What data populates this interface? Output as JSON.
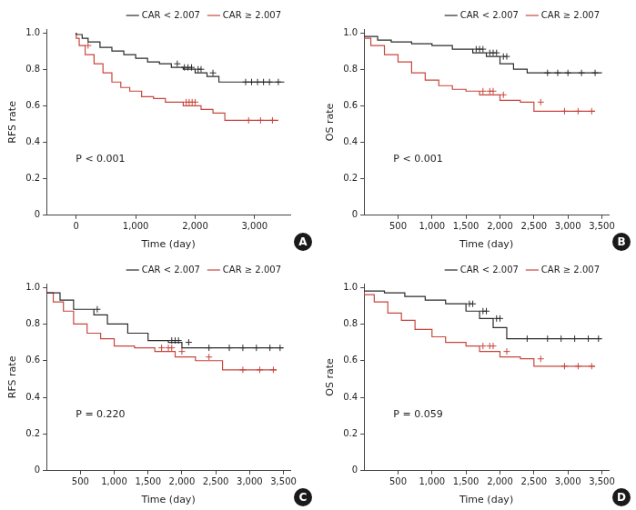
{
  "chart_data": [
    {
      "type": "line",
      "panel_label": "A",
      "annotation": "P < 0.001",
      "y_label": "RFS rate",
      "x_label": "Time (day)",
      "xlim": [
        -500,
        3600
      ],
      "xticks": [
        0,
        {
          "value": 1000,
          "label": "1,000"
        },
        {
          "value": 2000,
          "label": "2,000"
        },
        {
          "value": 3000,
          "label": "3,000"
        }
      ],
      "ylim": [
        0,
        1.02
      ],
      "yticks": [
        0,
        0.2,
        0.4,
        0.6,
        0.8,
        {
          "value": 1,
          "label": "1.0"
        }
      ],
      "grid": false,
      "legend": "top right",
      "line_style": "step",
      "series": [
        {
          "name": "CAR < 2.007",
          "color": "#2b2b2b",
          "x": [
            0,
            100,
            200,
            400,
            600,
            800,
            1000,
            1200,
            1400,
            1600,
            1800,
            2000,
            2200,
            2400,
            2600,
            2800,
            3500
          ],
          "values": [
            1,
            0.99,
            0.97,
            0.95,
            0.92,
            0.9,
            0.88,
            0.86,
            0.84,
            0.83,
            0.81,
            0.8,
            0.78,
            0.76,
            0.73,
            0.73,
            0.73
          ],
          "censored": {
            "x": [
              1700,
              1820,
              1880,
              1940,
              2050,
              2100,
              2300,
              2850,
              2950,
              3050,
              3150,
              3250,
              3400
            ],
            "values": [
              0.83,
              0.81,
              0.81,
              0.81,
              0.8,
              0.8,
              0.78,
              0.73,
              0.73,
              0.73,
              0.73,
              0.73,
              0.73
            ]
          }
        },
        {
          "name": "CAR ≥ 2.007",
          "color": "#c8463c",
          "x": [
            0,
            50,
            150,
            300,
            450,
            600,
            750,
            900,
            1100,
            1300,
            1500,
            1800,
            2100,
            2300,
            2500,
            2700,
            3400
          ],
          "values": [
            1,
            0.97,
            0.93,
            0.88,
            0.83,
            0.78,
            0.73,
            0.7,
            0.68,
            0.65,
            0.64,
            0.62,
            0.6,
            0.58,
            0.56,
            0.52,
            0.52
          ],
          "censored": {
            "x": [
              200,
              1850,
              1900,
              1950,
              2000,
              2900,
              3100,
              3300
            ],
            "values": [
              0.93,
              0.62,
              0.62,
              0.62,
              0.62,
              0.52,
              0.52,
              0.52
            ]
          }
        }
      ]
    },
    {
      "type": "line",
      "panel_label": "B",
      "annotation": "P < 0.001",
      "y_label": "OS rate",
      "x_label": "Time (day)",
      "xlim": [
        0,
        3600
      ],
      "xticks": [
        500,
        {
          "value": 1000,
          "label": "1,000"
        },
        {
          "value": 1500,
          "label": "1,500"
        },
        {
          "value": 2000,
          "label": "2,000"
        },
        {
          "value": 2500,
          "label": "2,500"
        },
        {
          "value": 3000,
          "label": "3,000"
        },
        {
          "value": 3500,
          "label": "3,500"
        }
      ],
      "ylim": [
        0,
        1.02
      ],
      "yticks": [
        0,
        0.2,
        0.4,
        0.6,
        0.8,
        {
          "value": 1,
          "label": "1.0"
        }
      ],
      "grid": false,
      "legend": "top right",
      "line_style": "step",
      "series": [
        {
          "name": "CAR < 2.007",
          "color": "#2b2b2b",
          "x": [
            0,
            200,
            400,
            700,
            1000,
            1300,
            1600,
            1800,
            2000,
            2200,
            2400,
            2600,
            3500
          ],
          "values": [
            1,
            0.98,
            0.96,
            0.95,
            0.94,
            0.93,
            0.91,
            0.89,
            0.87,
            0.83,
            0.8,
            0.78,
            0.78
          ],
          "censored": {
            "x": [
              1650,
              1700,
              1750,
              1850,
              1900,
              1950,
              2050,
              2100,
              2700,
              2850,
              3000,
              3200,
              3400
            ],
            "values": [
              0.91,
              0.91,
              0.91,
              0.89,
              0.89,
              0.89,
              0.87,
              0.87,
              0.78,
              0.78,
              0.78,
              0.78,
              0.78
            ]
          }
        },
        {
          "name": "CAR ≥ 2.007",
          "color": "#c8463c",
          "x": [
            0,
            100,
            300,
            500,
            700,
            900,
            1100,
            1300,
            1500,
            1700,
            2000,
            2300,
            2500,
            2800,
            3400
          ],
          "values": [
            1,
            0.97,
            0.93,
            0.88,
            0.84,
            0.78,
            0.74,
            0.71,
            0.69,
            0.68,
            0.66,
            0.63,
            0.62,
            0.57,
            0.57
          ],
          "censored": {
            "x": [
              1750,
              1850,
              1900,
              2050,
              2600,
              2950,
              3150,
              3350
            ],
            "values": [
              0.68,
              0.68,
              0.68,
              0.66,
              0.62,
              0.57,
              0.57,
              0.57
            ]
          }
        }
      ]
    },
    {
      "type": "line",
      "panel_label": "C",
      "annotation": "P = 0.220",
      "y_label": "RFS rate",
      "x_label": "Time (day)",
      "xlim": [
        0,
        3600
      ],
      "xticks": [
        500,
        {
          "value": 1000,
          "label": "1,000"
        },
        {
          "value": 1500,
          "label": "1,500"
        },
        {
          "value": 2000,
          "label": "2,000"
        },
        {
          "value": 2500,
          "label": "2,500"
        },
        {
          "value": 3000,
          "label": "3,000"
        },
        {
          "value": 3500,
          "label": "3,500"
        }
      ],
      "ylim": [
        0,
        1.02
      ],
      "yticks": [
        0,
        0.2,
        0.4,
        0.6,
        0.8,
        {
          "value": 1,
          "label": "1.0"
        }
      ],
      "grid": false,
      "legend": "top right",
      "line_style": "step",
      "series": [
        {
          "name": "CAR < 2.007",
          "color": "#2b2b2b",
          "x": [
            0,
            200,
            400,
            700,
            900,
            1200,
            1500,
            1800,
            2000,
            2200,
            3500
          ],
          "values": [
            1,
            0.97,
            0.93,
            0.88,
            0.85,
            0.8,
            0.75,
            0.71,
            0.7,
            0.67,
            0.67
          ],
          "censored": {
            "x": [
              750,
              1850,
              1900,
              1950,
              2100,
              2400,
              2700,
              2900,
              3100,
              3300,
              3450
            ],
            "values": [
              0.88,
              0.71,
              0.71,
              0.71,
              0.7,
              0.67,
              0.67,
              0.67,
              0.67,
              0.67,
              0.67
            ]
          }
        },
        {
          "name": "CAR ≥ 2.007",
          "color": "#c8463c",
          "x": [
            0,
            100,
            250,
            400,
            600,
            800,
            1000,
            1300,
            1600,
            1900,
            2200,
            2600,
            2750,
            3400
          ],
          "values": [
            1,
            0.97,
            0.92,
            0.87,
            0.8,
            0.75,
            0.72,
            0.68,
            0.67,
            0.65,
            0.62,
            0.6,
            0.55,
            0.55
          ],
          "censored": {
            "x": [
              1700,
              1800,
              1850,
              2000,
              2400,
              2900,
              3150,
              3350
            ],
            "values": [
              0.67,
              0.67,
              0.67,
              0.65,
              0.62,
              0.55,
              0.55,
              0.55
            ]
          }
        }
      ]
    },
    {
      "type": "line",
      "panel_label": "D",
      "annotation": "P = 0.059",
      "y_label": "OS rate",
      "x_label": "Time (day)",
      "xlim": [
        0,
        3600
      ],
      "xticks": [
        500,
        {
          "value": 1000,
          "label": "1,000"
        },
        {
          "value": 1500,
          "label": "1,500"
        },
        {
          "value": 2000,
          "label": "2,000"
        },
        {
          "value": 2500,
          "label": "2,500"
        },
        {
          "value": 3000,
          "label": "3,000"
        },
        {
          "value": 3500,
          "label": "3,500"
        }
      ],
      "ylim": [
        0,
        1.02
      ],
      "yticks": [
        0,
        0.2,
        0.4,
        0.6,
        0.8,
        {
          "value": 1,
          "label": "1.0"
        }
      ],
      "grid": false,
      "legend": "top right",
      "line_style": "step",
      "series": [
        {
          "name": "CAR < 2.007",
          "color": "#2b2b2b",
          "x": [
            0,
            300,
            600,
            900,
            1200,
            1500,
            1700,
            1900,
            2100,
            2300,
            3500
          ],
          "values": [
            1,
            0.98,
            0.97,
            0.95,
            0.93,
            0.91,
            0.87,
            0.83,
            0.78,
            0.72,
            0.72
          ],
          "censored": {
            "x": [
              1550,
              1600,
              1750,
              1800,
              1950,
              2000,
              2400,
              2700,
              2900,
              3100,
              3300,
              3450
            ],
            "values": [
              0.91,
              0.91,
              0.87,
              0.87,
              0.83,
              0.83,
              0.72,
              0.72,
              0.72,
              0.72,
              0.72,
              0.72
            ]
          }
        },
        {
          "name": "CAR ≥ 2.007",
          "color": "#c8463c",
          "x": [
            0,
            150,
            350,
            550,
            750,
            1000,
            1200,
            1500,
            1700,
            2000,
            2300,
            2500,
            2800,
            3400
          ],
          "values": [
            1,
            0.96,
            0.92,
            0.86,
            0.82,
            0.77,
            0.73,
            0.7,
            0.68,
            0.65,
            0.62,
            0.61,
            0.57,
            0.57
          ],
          "censored": {
            "x": [
              1750,
              1850,
              1900,
              2100,
              2600,
              2950,
              3150,
              3350
            ],
            "values": [
              0.68,
              0.68,
              0.68,
              0.65,
              0.61,
              0.57,
              0.57,
              0.57
            ]
          }
        }
      ]
    }
  ]
}
